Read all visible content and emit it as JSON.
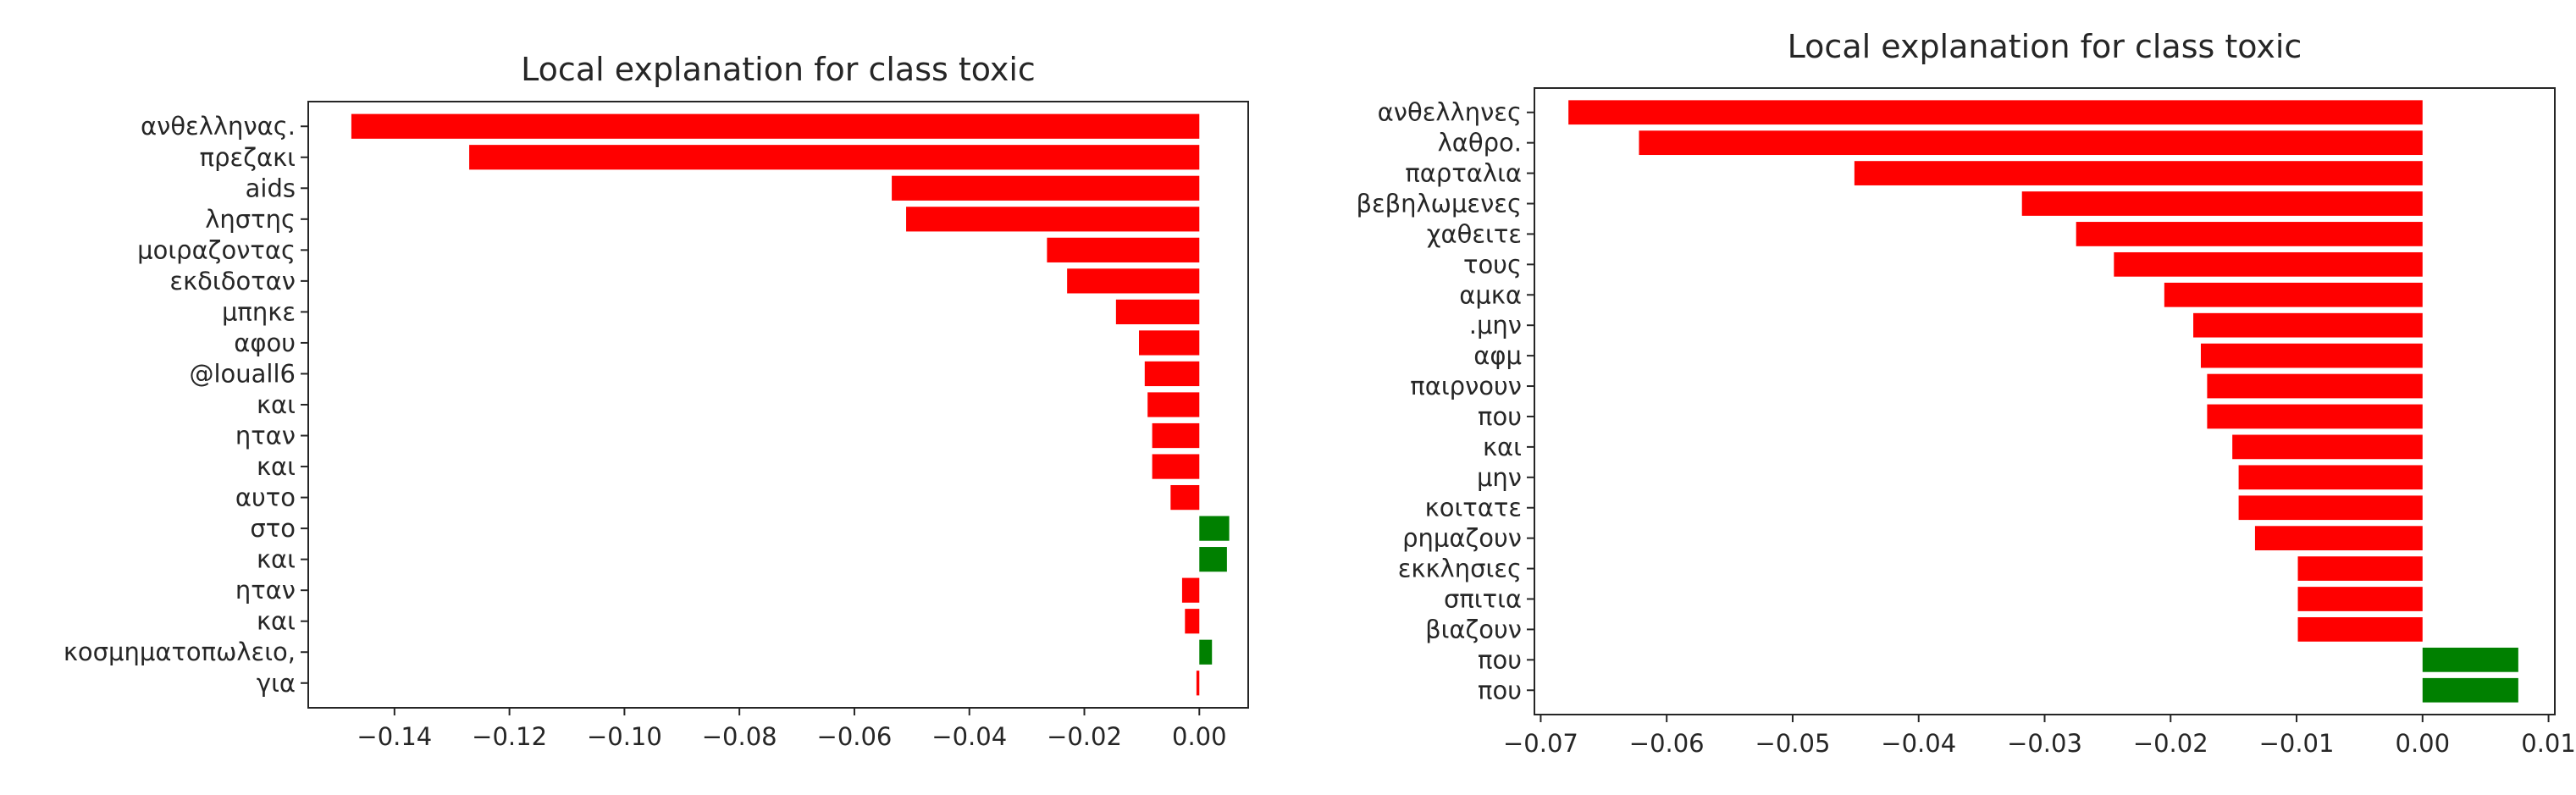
{
  "chart_data": [
    {
      "type": "bar",
      "orientation": "horizontal",
      "title": "Local explanation for class toxic",
      "xlabel": "",
      "ylabel": "",
      "xlim": [
        -0.155,
        0.0085
      ],
      "xticks": [
        "-0.14",
        "-0.12",
        "-0.10",
        "-0.08",
        "-0.06",
        "-0.04",
        "-0.02",
        "0.00"
      ],
      "xtick_values": [
        -0.14,
        -0.12,
        -0.1,
        -0.08,
        -0.06,
        -0.04,
        -0.02,
        0.0
      ],
      "positive_color": "#008000",
      "negative_color": "#ff0000",
      "grid": false,
      "categories": [
        "ανθελληνας.",
        "πρεζακι",
        "aids",
        "ληστης",
        "μοιραζοντας",
        "εκδιδοταν",
        "μπηκε",
        "αφου",
        "@louall6",
        "και",
        "ηταν",
        "και",
        "αυτο",
        "στο",
        "και",
        "ηταν",
        "και",
        "κοσμηματοπωλειο,",
        "για"
      ],
      "values": [
        -0.1475,
        -0.127,
        -0.0535,
        -0.051,
        -0.0265,
        -0.023,
        -0.0145,
        -0.0105,
        -0.0095,
        -0.009,
        -0.0082,
        -0.0082,
        -0.005,
        0.0052,
        0.0048,
        -0.003,
        -0.0025,
        0.0022,
        -0.0005
      ]
    },
    {
      "type": "bar",
      "orientation": "horizontal",
      "title": "Local explanation for class toxic",
      "xlabel": "",
      "ylabel": "",
      "xlim": [
        -0.0705,
        0.0105
      ],
      "xticks": [
        "-0.07",
        "-0.06",
        "-0.05",
        "-0.04",
        "-0.03",
        "-0.02",
        "-0.01",
        "0.00",
        "0.01"
      ],
      "xtick_values": [
        -0.07,
        -0.06,
        -0.05,
        -0.04,
        -0.03,
        -0.02,
        -0.01,
        0.0,
        0.01
      ],
      "positive_color": "#008000",
      "negative_color": "#ff0000",
      "grid": false,
      "categories": [
        "ανθελληνες",
        "λαθρο.",
        "παρταλια",
        "βεβηλωμενες",
        "χαθειτε",
        "τους",
        "αμκα",
        ".μην",
        "αφμ",
        "παιρνουν",
        "που",
        "και",
        "μην",
        "κοιτατε",
        "ρημαζουν",
        "εκκλησιες",
        "σπιτια",
        "βιαζουν",
        "που",
        "που"
      ],
      "values": [
        -0.0678,
        -0.0622,
        -0.0451,
        -0.0318,
        -0.0275,
        -0.0245,
        -0.0205,
        -0.0182,
        -0.0176,
        -0.0171,
        -0.0171,
        -0.0151,
        -0.0146,
        -0.0146,
        -0.0133,
        -0.0099,
        -0.0099,
        -0.0099,
        0.0076,
        0.0076
      ]
    }
  ]
}
